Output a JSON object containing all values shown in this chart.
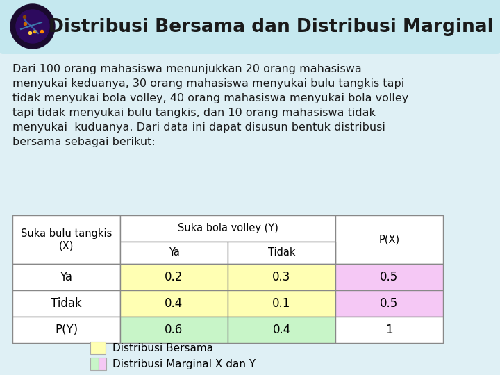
{
  "title": "Distribusi Bersama dan Distribusi Marginal",
  "background_color": "#dff0f5",
  "header_bg": "#c5e8ef",
  "body_text_lines": [
    "Dari 100 orang mahasiswa menunjukkan 20 orang mahasiswa",
    "menyukai keduanya, 30 orang mahasiswa menyukai bulu tangkis tapi",
    "tidak menyukai bola volley, 40 orang mahasiswa menyukai bola volley",
    "tapi tidak menyukai bulu tangkis, dan 10 orang mahasiswa tidak",
    "menyukai  kuduanya. Dari data ini dapat disusun bentuk distribusi",
    "bersama sebagai berikut:"
  ],
  "table": {
    "rows": [
      [
        "Ya",
        "0.2",
        "0.3",
        "0.5"
      ],
      [
        "Tidak",
        "0.4",
        "0.1",
        "0.5"
      ],
      [
        "P(Y)",
        "0.6",
        "0.4",
        "1"
      ]
    ],
    "cell_colors": {
      "joint": "#ffffb3",
      "marginal_green": "#c8f5c8",
      "marginal_pink": "#f5c8f5",
      "header_white": "#ffffff",
      "white": "#ffffff"
    }
  },
  "legend": [
    {
      "color": "#ffffb3",
      "label": "Distribusi Bersama"
    },
    {
      "color_left": "#c8f5c8",
      "color_right": "#f5c8f5",
      "label": "Distribusi Marginal X dan Y"
    }
  ],
  "title_color": "#1a1a1a",
  "text_color": "#1a1a1a",
  "title_fontsize": 19,
  "body_fontsize": 11.5,
  "table_fontsize": 12,
  "legend_fontsize": 11
}
